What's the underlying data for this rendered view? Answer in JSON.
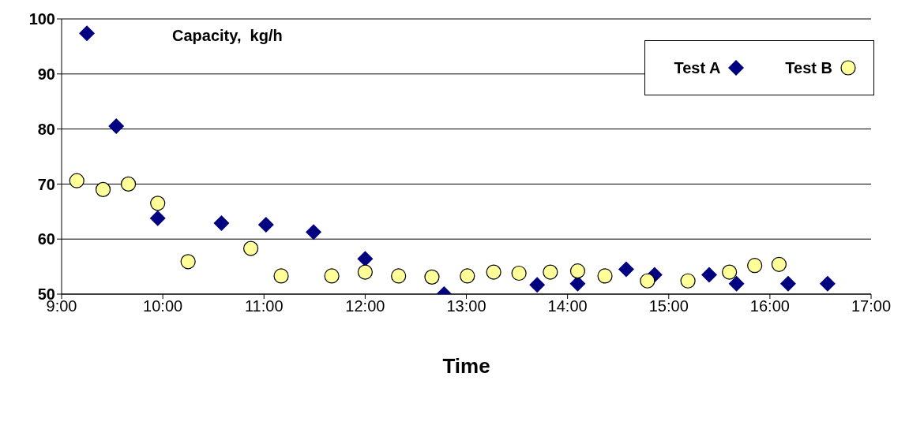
{
  "chart_data": {
    "type": "scatter",
    "title": "Capacity,  kg/h",
    "xlabel": "Time",
    "xlim": [
      9,
      17
    ],
    "xticks": [
      {
        "value": 9,
        "label": "9:00"
      },
      {
        "value": 10,
        "label": "10:00"
      },
      {
        "value": 11,
        "label": "11:00"
      },
      {
        "value": 12,
        "label": "12:00"
      },
      {
        "value": 13,
        "label": "13:00"
      },
      {
        "value": 14,
        "label": "14:00"
      },
      {
        "value": 15,
        "label": "15:00"
      },
      {
        "value": 16,
        "label": "16:00"
      },
      {
        "value": 17,
        "label": "17:00"
      }
    ],
    "ylim": [
      50,
      100
    ],
    "yticks": [
      50,
      60,
      70,
      80,
      90,
      100
    ],
    "grid": "y",
    "legend": "top right",
    "series": [
      {
        "name": "Test A",
        "color": "#000080",
        "marker": "diamond",
        "x": [
          9.25,
          9.54,
          9.95,
          10.58,
          11.02,
          11.49,
          12.0,
          12.78,
          13.7,
          14.1,
          14.58,
          14.86,
          15.4,
          15.67,
          16.18,
          16.57
        ],
        "values": [
          97.4,
          80.5,
          63.8,
          62.9,
          62.6,
          61.3,
          56.4,
          50,
          51.7,
          51.9,
          54.5,
          53.5,
          53.5,
          51.9,
          51.9,
          51.9
        ]
      },
      {
        "name": "Test B",
        "color": "#ffff99",
        "marker": "circle",
        "x": [
          9.15,
          9.41,
          9.66,
          9.95,
          10.25,
          10.87,
          11.17,
          11.67,
          12.0,
          12.33,
          12.66,
          13.01,
          13.27,
          13.52,
          13.83,
          14.1,
          14.37,
          14.79,
          15.19,
          15.6,
          15.85,
          16.09
        ],
        "values": [
          70.6,
          69.0,
          70.0,
          66.5,
          55.9,
          58.3,
          53.3,
          53.3,
          54.0,
          53.3,
          53.1,
          53.3,
          54.0,
          53.8,
          54.0,
          54.2,
          53.3,
          52.4,
          52.4,
          54.0,
          55.2,
          55.4
        ]
      }
    ]
  }
}
